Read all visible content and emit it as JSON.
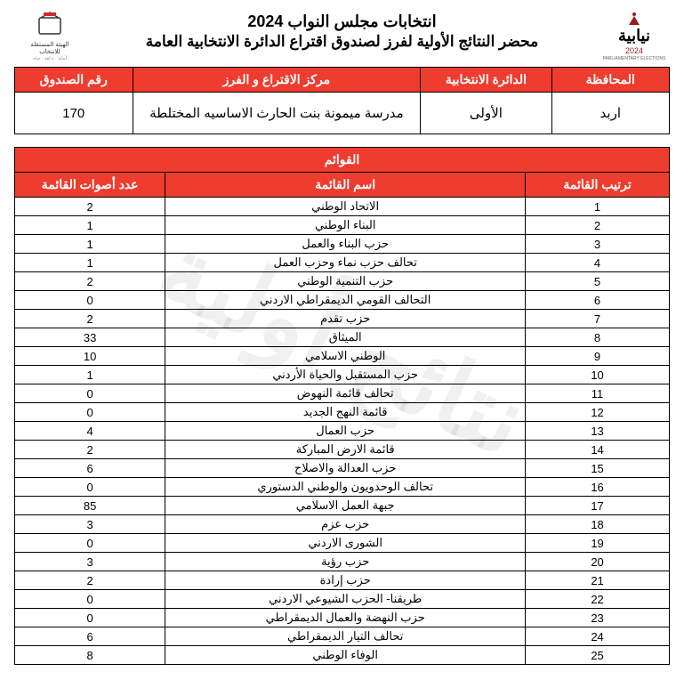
{
  "header": {
    "title_main": "انتخابات مجلس النواب 2024",
    "title_sub": "محضر النتائج الأولية لفرز لصندوق اقتراع الدائرة الانتخابية العامة"
  },
  "info": {
    "headers": {
      "governorate": "المحافظة",
      "district": "الدائرة الانتخابية",
      "center": "مركز الاقتراع و الفرز",
      "box": "رقم الصندوق"
    },
    "values": {
      "governorate": "اربد",
      "district": "الأولى",
      "center": "مدرسة ميمونة بنت الحارث الاساسيه المختلطة",
      "box": "170"
    }
  },
  "lists": {
    "section_title": "القوائم",
    "headers": {
      "rank": "ترتيب القائمة",
      "name": "اسم القائمة",
      "votes": "عدد أصوات القائمة"
    },
    "rows": [
      {
        "rank": "1",
        "name": "الاتحاد الوطني",
        "votes": "2"
      },
      {
        "rank": "2",
        "name": "البناء الوطني",
        "votes": "1"
      },
      {
        "rank": "3",
        "name": "حزب البناء والعمل",
        "votes": "1"
      },
      {
        "rank": "4",
        "name": "تحالف حزب نماء وحزب العمل",
        "votes": "1"
      },
      {
        "rank": "5",
        "name": "حزب التنمية الوطني",
        "votes": "2"
      },
      {
        "rank": "6",
        "name": "التحالف القومي الديمقراطي الاردني",
        "votes": "0"
      },
      {
        "rank": "7",
        "name": "حزب تقدم",
        "votes": "2"
      },
      {
        "rank": "8",
        "name": "الميثاق",
        "votes": "33"
      },
      {
        "rank": "9",
        "name": "الوطني الاسلامي",
        "votes": "10"
      },
      {
        "rank": "10",
        "name": "حزب المستقبل والحياة الأردني",
        "votes": "1"
      },
      {
        "rank": "11",
        "name": "تحالف قائمة النهوض",
        "votes": "0"
      },
      {
        "rank": "12",
        "name": "قائمة النهج الجديد",
        "votes": "0"
      },
      {
        "rank": "13",
        "name": "حزب العمال",
        "votes": "4"
      },
      {
        "rank": "14",
        "name": "قائمة الارض المباركة",
        "votes": "2"
      },
      {
        "rank": "15",
        "name": "حزب العدالة والاصلاح",
        "votes": "6"
      },
      {
        "rank": "16",
        "name": "تحالف الوحدويون والوطني الدستوري",
        "votes": "0"
      },
      {
        "rank": "17",
        "name": "جبهة العمل الاسلامي",
        "votes": "85"
      },
      {
        "rank": "18",
        "name": "حزب عزم",
        "votes": "3"
      },
      {
        "rank": "19",
        "name": "الشورى الاردني",
        "votes": "0"
      },
      {
        "rank": "20",
        "name": "حزب رؤية",
        "votes": "3"
      },
      {
        "rank": "21",
        "name": "حزب إرادة",
        "votes": "2"
      },
      {
        "rank": "22",
        "name": "طريقنا- الحزب الشيوعي الاردني",
        "votes": "0"
      },
      {
        "rank": "23",
        "name": "حزب النهضة والعمال الديمقراطي",
        "votes": "0"
      },
      {
        "rank": "24",
        "name": "تحالف التيار الديمقراطي",
        "votes": "6"
      },
      {
        "rank": "25",
        "name": "الوفاء الوطني",
        "votes": "8"
      }
    ]
  },
  "watermark": "نتائج أولية",
  "colors": {
    "header_bg": "#ee3c2f",
    "header_fg": "#ffffff",
    "border": "#000000"
  }
}
